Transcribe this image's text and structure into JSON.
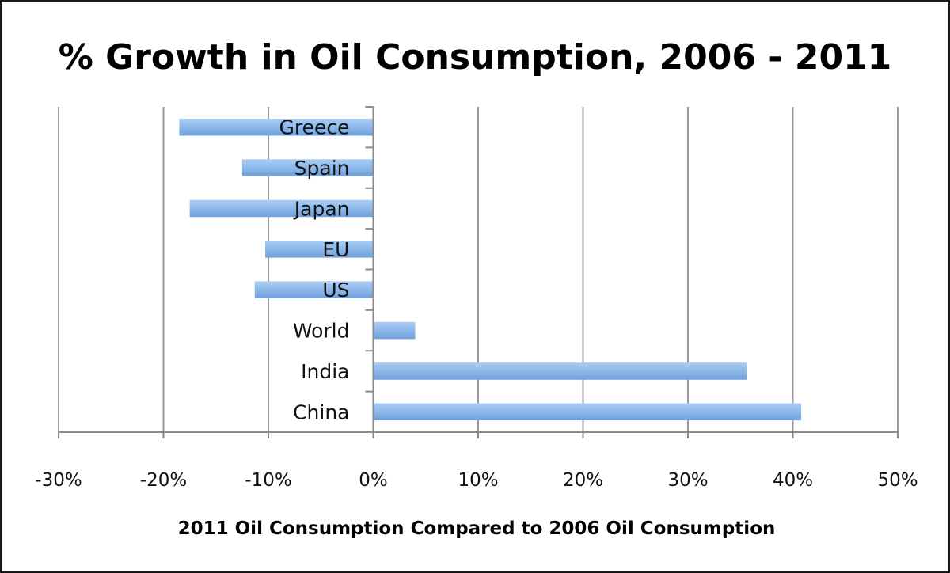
{
  "chart_data": {
    "type": "bar",
    "orientation": "horizontal",
    "title": "% Growth in Oil Consumption, 2006 - 2011",
    "xlabel": "2011 Oil Consumption Compared to 2006 Oil Consumption",
    "ylabel": "",
    "categories": [
      "Greece",
      "Spain",
      "Japan",
      "EU",
      "US",
      "World",
      "India",
      "China"
    ],
    "values": [
      -18.5,
      -12.5,
      -17.5,
      -10.3,
      -11.3,
      4.0,
      35.6,
      40.8
    ],
    "value_unit": "%",
    "xlim": [
      -30,
      50
    ],
    "xticks": [
      -30,
      -20,
      -10,
      0,
      10,
      20,
      30,
      40,
      50
    ],
    "xtick_labels": [
      "-30%",
      "-20%",
      "-10%",
      "0%",
      "10%",
      "20%",
      "30%",
      "40%",
      "50%"
    ],
    "grid": true,
    "legend": "none",
    "bar_color": "#8db8ea"
  }
}
